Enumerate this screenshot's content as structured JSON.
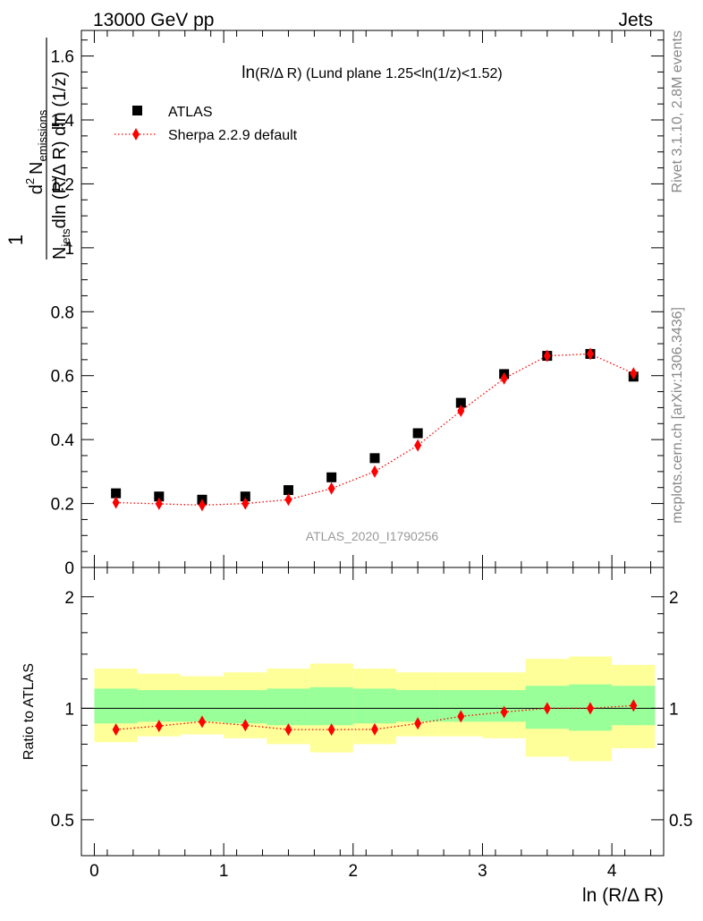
{
  "header": {
    "left": "13000 GeV pp",
    "right": "Jets"
  },
  "side_labels": {
    "rivet": "Rivet 3.1.10,  2.8M events",
    "mcplots": "mcplots.cern.ch [arXiv:1306.3436]"
  },
  "chart_data": [
    {
      "type": "scatter",
      "title": "ln(R/Δ R) (Lund plane 1.25<ln(1/z)<1.52)",
      "title_parts": {
        "main": "ln",
        "sub": "(R/Δ R) (Lund plane 1.25<ln(1/z)<1.52)"
      },
      "watermark": "ATLAS_2020_I1790256",
      "ylabel_parts": {
        "one": "1",
        "d2": "d",
        "two": "2",
        "n": "N",
        "emissions": "emissions",
        "njets": "N",
        "jets": "jets",
        "rest": "dln (R/Δ R) dln (1/z)"
      },
      "xlim": [
        -0.1,
        4.4
      ],
      "ylim": [
        0,
        1.68
      ],
      "yticks": [
        "0",
        "0.2",
        "0.4",
        "0.6",
        "0.8",
        "1",
        "1.2",
        "1.4",
        "1.6"
      ],
      "legend_position": "top-left",
      "x": [
        0.167,
        0.5,
        0.833,
        1.167,
        1.5,
        1.833,
        2.167,
        2.5,
        2.833,
        3.167,
        3.5,
        3.833,
        4.167
      ],
      "series": [
        {
          "name": "ATLAS",
          "marker": "square",
          "color": "#000000",
          "values": [
            0.232,
            0.222,
            0.212,
            0.222,
            0.242,
            0.282,
            0.342,
            0.42,
            0.515,
            0.605,
            0.662,
            0.668,
            0.597
          ]
        },
        {
          "name": "Sherpa 2.2.9 default",
          "marker": "diamond",
          "line": "dotted",
          "color": "#ff0000",
          "values": [
            0.203,
            0.199,
            0.195,
            0.2,
            0.212,
            0.247,
            0.3,
            0.382,
            0.49,
            0.591,
            0.662,
            0.668,
            0.607
          ]
        }
      ]
    },
    {
      "type": "scatter",
      "ylabel": "Ratio to ATLAS",
      "xlabel": "ln (R/Δ R)",
      "xlim": [
        -0.1,
        4.4
      ],
      "ylim": [
        0.4,
        2.4
      ],
      "yscale": "log",
      "yticks": [
        "0.5",
        "1",
        "2"
      ],
      "xticks": [
        "0",
        "1",
        "2",
        "3",
        "4"
      ],
      "x_edges": [
        0,
        0.333,
        0.667,
        1.0,
        1.333,
        1.667,
        2.0,
        2.333,
        2.667,
        3.0,
        3.333,
        3.667,
        4.0,
        4.333
      ],
      "band_inner": {
        "color": "#99ff99",
        "lo": [
          0.91,
          0.92,
          0.92,
          0.91,
          0.9,
          0.9,
          0.91,
          0.92,
          0.92,
          0.92,
          0.88,
          0.87,
          0.9
        ],
        "hi": [
          1.13,
          1.12,
          1.12,
          1.12,
          1.13,
          1.14,
          1.13,
          1.12,
          1.12,
          1.12,
          1.15,
          1.16,
          1.15
        ]
      },
      "band_outer": {
        "color": "#ffff99",
        "lo": [
          0.81,
          0.84,
          0.85,
          0.83,
          0.8,
          0.76,
          0.8,
          0.84,
          0.84,
          0.83,
          0.74,
          0.72,
          0.78
        ],
        "hi": [
          1.28,
          1.24,
          1.22,
          1.25,
          1.28,
          1.32,
          1.28,
          1.25,
          1.25,
          1.25,
          1.36,
          1.38,
          1.31
        ]
      },
      "ratio": {
        "name": "Sherpa 2.2.9 default",
        "color": "#ff0000",
        "values": [
          0.876,
          0.896,
          0.92,
          0.9,
          0.876,
          0.876,
          0.877,
          0.91,
          0.951,
          0.977,
          1.0,
          1.0,
          1.017
        ]
      }
    }
  ]
}
